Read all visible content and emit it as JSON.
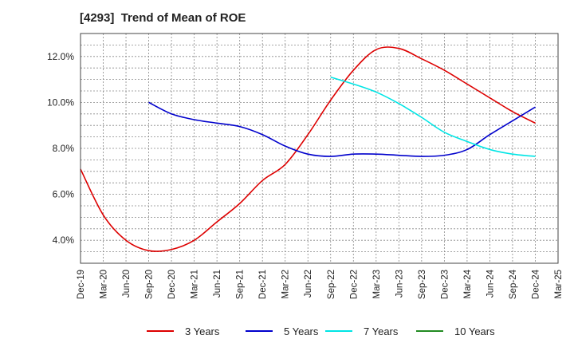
{
  "chart_data": {
    "type": "line",
    "title": "[4293]  Trend of Mean of ROE",
    "xlabel": "",
    "ylabel": "",
    "y_ticks": [
      "4.0%",
      "6.0%",
      "8.0%",
      "10.0%",
      "12.0%"
    ],
    "ylim": [
      3.0,
      13.0
    ],
    "x_ticks": [
      "Dec-19",
      "Mar-20",
      "Jun-20",
      "Sep-20",
      "Dec-20",
      "Mar-21",
      "Jun-21",
      "Sep-21",
      "Dec-21",
      "Mar-22",
      "Jun-22",
      "Sep-22",
      "Dec-22",
      "Mar-23",
      "Jun-23",
      "Sep-23",
      "Dec-23",
      "Mar-24",
      "Jun-24",
      "Sep-24",
      "Dec-24",
      "Mar-25"
    ],
    "grid": true,
    "legend_position": "bottom",
    "series": [
      {
        "name": "3 Years",
        "color": "#dd0000",
        "x": [
          "Dec-19",
          "Mar-20",
          "Jun-20",
          "Sep-20",
          "Dec-20",
          "Mar-21",
          "Jun-21",
          "Sep-21",
          "Dec-21",
          "Mar-22",
          "Jun-22",
          "Sep-22",
          "Dec-22",
          "Mar-23",
          "Jun-23",
          "Sep-23",
          "Dec-23",
          "Mar-24",
          "Jun-24",
          "Sep-24",
          "Dec-24"
        ],
        "values": [
          7.1,
          5.1,
          4.0,
          3.55,
          3.6,
          4.0,
          4.8,
          5.6,
          6.6,
          7.3,
          8.6,
          10.1,
          11.4,
          12.3,
          12.35,
          11.9,
          11.4,
          10.8,
          10.2,
          9.6,
          9.1
        ]
      },
      {
        "name": "5 Years",
        "color": "#0000cc",
        "x": [
          "Sep-20",
          "Dec-20",
          "Mar-21",
          "Jun-21",
          "Sep-21",
          "Dec-21",
          "Mar-22",
          "Jun-22",
          "Sep-22",
          "Dec-22",
          "Mar-23",
          "Jun-23",
          "Sep-23",
          "Dec-23",
          "Mar-24",
          "Jun-24",
          "Sep-24",
          "Dec-24"
        ],
        "values": [
          10.0,
          9.5,
          9.25,
          9.1,
          8.95,
          8.6,
          8.1,
          7.75,
          7.65,
          7.75,
          7.75,
          7.7,
          7.65,
          7.7,
          7.95,
          8.6,
          9.2,
          9.8
        ]
      },
      {
        "name": "7 Years",
        "color": "#00e5e5",
        "x": [
          "Sep-22",
          "Dec-22",
          "Mar-23",
          "Jun-23",
          "Sep-23",
          "Dec-23",
          "Mar-24",
          "Jun-24",
          "Sep-24",
          "Dec-24"
        ],
        "values": [
          11.1,
          10.8,
          10.45,
          9.95,
          9.35,
          8.7,
          8.3,
          7.95,
          7.75,
          7.65
        ]
      },
      {
        "name": "10 Years",
        "color": "#228b22",
        "x": [],
        "values": []
      }
    ]
  }
}
